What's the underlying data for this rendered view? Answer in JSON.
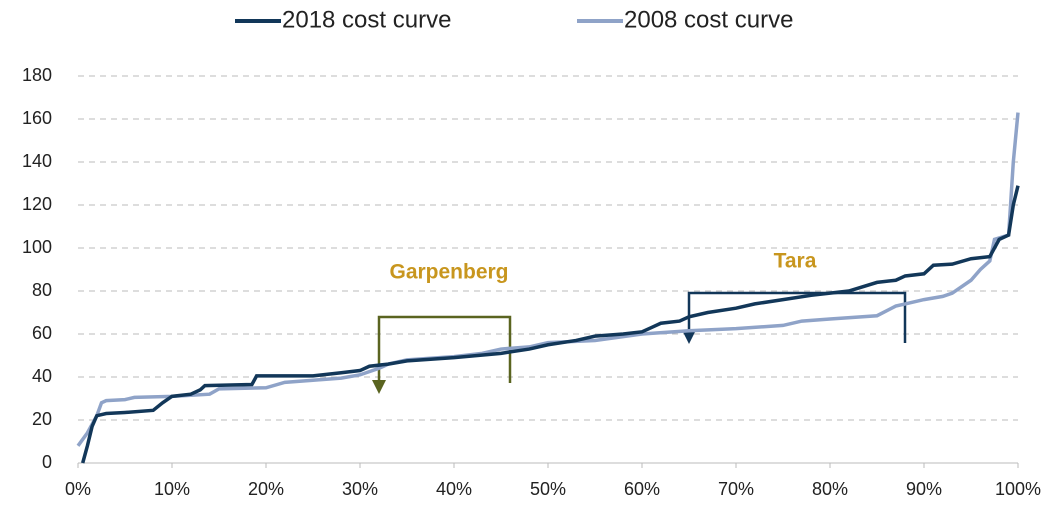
{
  "chart_data": {
    "type": "line",
    "legend": "top",
    "grid": true,
    "xlim": [
      0,
      100
    ],
    "xticks": [
      {
        "value": 0,
        "label": "0%"
      },
      {
        "value": 10,
        "label": "10%"
      },
      {
        "value": 20,
        "label": "20%"
      },
      {
        "value": 30,
        "label": "30%"
      },
      {
        "value": 40,
        "label": "40%"
      },
      {
        "value": 50,
        "label": "50%"
      },
      {
        "value": 60,
        "label": "60%"
      },
      {
        "value": 70,
        "label": "70%"
      },
      {
        "value": 80,
        "label": "80%"
      },
      {
        "value": 90,
        "label": "90%"
      },
      {
        "value": 100,
        "label": "100%"
      }
    ],
    "ylim": [
      0,
      180
    ],
    "yticks": [
      0,
      20,
      40,
      60,
      80,
      100,
      120,
      140,
      160,
      180
    ],
    "annotations": [
      "Garpenberg",
      "Tara"
    ],
    "series": [
      {
        "name": "2018 cost curve",
        "color": "#123759",
        "x": [
          0.5,
          1,
          1.5,
          2,
          3,
          5,
          8,
          9,
          10,
          12,
          13,
          13.5,
          18.5,
          19,
          25,
          28,
          30,
          31,
          33,
          35,
          40,
          45,
          48,
          50,
          53,
          55,
          58,
          60,
          61,
          62,
          64,
          65,
          67,
          70,
          72,
          75,
          78,
          80,
          82,
          85,
          87,
          88,
          90,
          91,
          93,
          95,
          97,
          98,
          99,
          99.5,
          100
        ],
        "values": [
          0,
          8,
          17,
          22,
          23,
          23.5,
          24.5,
          28,
          31,
          32,
          34,
          36,
          36.5,
          40.5,
          40.5,
          42,
          43,
          45,
          46,
          47.5,
          49,
          51,
          53,
          55,
          57,
          59,
          60,
          61,
          63,
          65,
          66,
          68,
          70,
          72,
          74,
          76,
          78,
          79,
          80,
          84,
          85,
          87,
          88,
          92,
          92.5,
          95,
          96,
          104,
          106,
          120,
          129
        ]
      },
      {
        "name": "2008 cost curve",
        "color": "#8fa3c8",
        "x": [
          0,
          1,
          2,
          2.5,
          3,
          5,
          6,
          10,
          14,
          15,
          20,
          22,
          25,
          28,
          30,
          32,
          33,
          35,
          40,
          43,
          45,
          48,
          50,
          55,
          60,
          65,
          70,
          75,
          77,
          80,
          85,
          87,
          88,
          90,
          92,
          93,
          95,
          96,
          97,
          97.5,
          99,
          99.5,
          100
        ],
        "values": [
          8,
          14,
          22,
          28,
          29,
          29.5,
          30.5,
          31,
          32,
          34.5,
          35,
          37.5,
          38.5,
          39.5,
          41,
          44,
          46,
          48,
          49.5,
          51,
          53,
          54,
          56,
          57,
          60,
          61.5,
          62.5,
          64,
          66,
          67,
          68.5,
          73,
          74,
          76,
          77.5,
          79,
          85,
          90,
          94,
          104,
          106,
          140,
          163
        ]
      }
    ]
  }
}
